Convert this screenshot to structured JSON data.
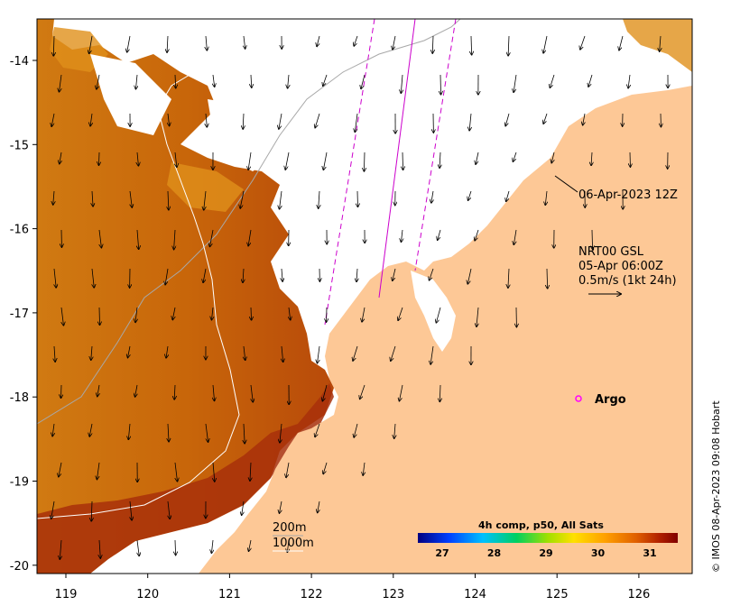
{
  "map": {
    "lon_ticks": [
      "119",
      "120",
      "121",
      "122",
      "123",
      "124",
      "125",
      "126"
    ],
    "lat_ticks": [
      "-14",
      "-15",
      "-16",
      "-17",
      "-18",
      "-19",
      "-20"
    ],
    "timestamp_label": "06-Apr-2023 12Z",
    "current_info": {
      "line1": "NRT00 GSL",
      "line2": "05-Apr 06:00Z",
      "line3": "0.5m/s (1kt 24h)"
    },
    "argo_label": "Argo",
    "contours": {
      "shallow": "200m",
      "deep": "1000m"
    },
    "colorbar": {
      "title": "4h comp, p50, All Sats",
      "ticks": [
        "27",
        "28",
        "29",
        "30",
        "31"
      ],
      "colors": [
        "#000080",
        "#0040ff",
        "#00c0ff",
        "#00d060",
        "#a0e000",
        "#ffe000",
        "#ffa000",
        "#e06000",
        "#b02000",
        "#800000"
      ]
    },
    "credit": "© IMOS 08-Apr-2023 09:08 Hobart",
    "colors": {
      "land": "#fdc896",
      "sst_warm": "#cc6a0a",
      "sst_hot": "#a8300a",
      "track": "#cc00cc",
      "argo": "#ff00ff"
    }
  }
}
